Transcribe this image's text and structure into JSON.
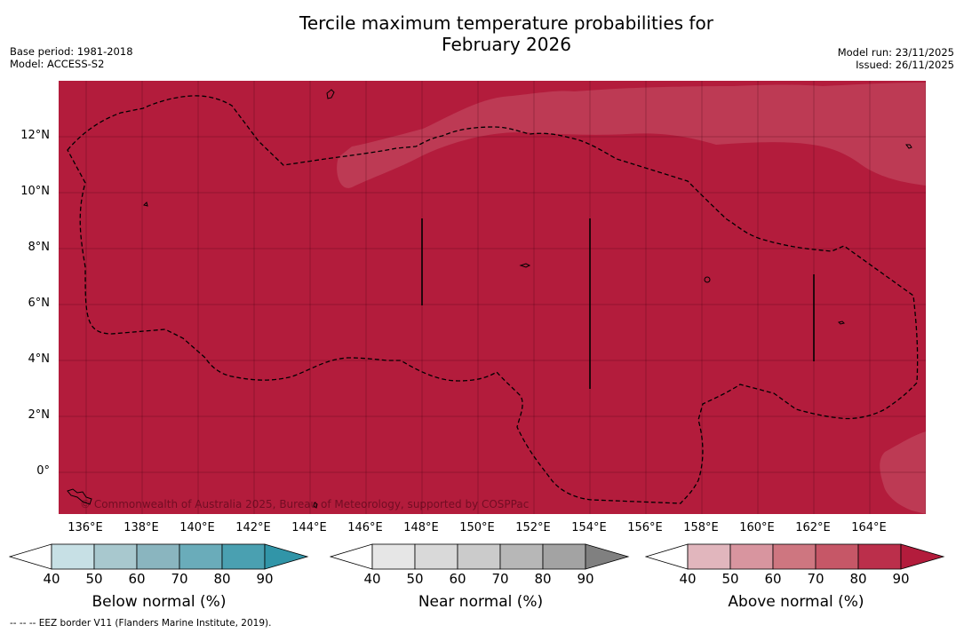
{
  "title_line1": "Tercile maximum temperature probabilities for",
  "title_line2": "February 2026",
  "meta_left": {
    "base_period": "Base period: 1981-2018",
    "model": "Model: ACCESS-S2"
  },
  "meta_right": {
    "model_run": "Model run: 23/11/2025",
    "issued": "Issued: 26/11/2025"
  },
  "map": {
    "lat_labels": [
      "12°N",
      "10°N",
      "8°N",
      "6°N",
      "4°N",
      "2°N",
      "0°"
    ],
    "lon_labels": [
      "136°E",
      "138°E",
      "140°E",
      "142°E",
      "144°E",
      "146°E",
      "148°E",
      "150°E",
      "152°E",
      "154°E",
      "156°E",
      "158°E",
      "160°E",
      "162°E",
      "164°E"
    ],
    "copyright": "© Commonwealth of Australia 2025, Bureau of Meteorology, supported by COSPPac",
    "colors": {
      "dominant": "#b31c3c",
      "lighter": "#bd3a54"
    }
  },
  "colorbars": [
    {
      "label": "Below normal (%)",
      "ticks": [
        "40",
        "50",
        "60",
        "70",
        "80",
        "90"
      ],
      "colors": [
        "#ffffff",
        "#c7e0e5",
        "#a8c8ce",
        "#8ab5bf",
        "#6aacba",
        "#4aa0b1",
        "#3195a8"
      ]
    },
    {
      "label": "Near normal (%)",
      "ticks": [
        "40",
        "50",
        "60",
        "70",
        "80",
        "90"
      ],
      "colors": [
        "#ffffff",
        "#e6e6e6",
        "#d9d9d9",
        "#cbcbcb",
        "#b7b7b7",
        "#a3a3a3",
        "#808080"
      ]
    },
    {
      "label": "Above normal (%)",
      "ticks": [
        "40",
        "50",
        "60",
        "70",
        "80",
        "90"
      ],
      "colors": [
        "#ffffff",
        "#e1b6bd",
        "#d8959f",
        "#ce7680",
        "#c65767",
        "#bb2f4b",
        "#b31c3c"
      ]
    }
  ],
  "footnote": "--  --  -- EEZ border V11 (Flanders Marine Institute, 2019)."
}
